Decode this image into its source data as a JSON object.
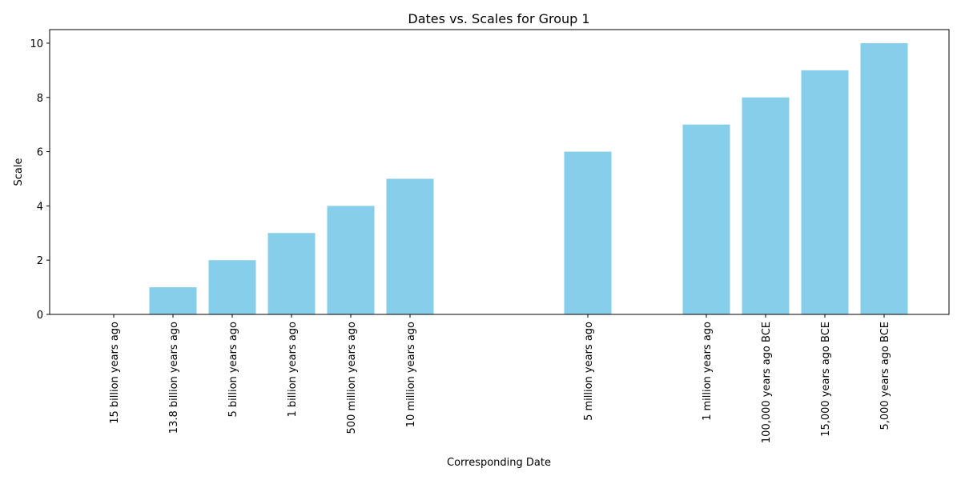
{
  "chart_data": {
    "type": "bar",
    "title": "Dates vs. Scales for Group 1",
    "xlabel": "Corresponding Date",
    "ylabel": "Scale",
    "ylim": [
      0,
      10.5
    ],
    "yticks": [
      0,
      2,
      4,
      6,
      8,
      10
    ],
    "bar_color": "#87CEEB",
    "grid": false,
    "legend": "none",
    "slots": [
      {
        "label": "15 billion years ago",
        "value": 0
      },
      {
        "label": "13.8 billion years ago",
        "value": 1
      },
      {
        "label": "5 billion years ago",
        "value": 2
      },
      {
        "label": "1 billion years ago",
        "value": 3
      },
      {
        "label": "500 million years ago",
        "value": 4
      },
      {
        "label": "10 million years ago",
        "value": 5
      },
      null,
      null,
      {
        "label": "5 million years ago",
        "value": 6
      },
      null,
      {
        "label": "1 million years ago",
        "value": 7
      },
      {
        "label": "100,000 years ago BCE",
        "value": 8
      },
      {
        "label": "15,000 years ago BCE",
        "value": 9
      },
      {
        "label": "5,000 years ago BCE",
        "value": 10
      }
    ]
  }
}
